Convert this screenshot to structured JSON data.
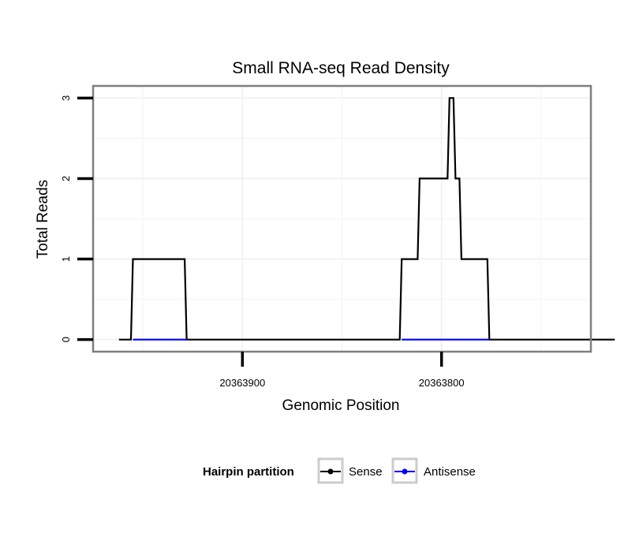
{
  "chart_data": {
    "type": "line",
    "title": "Small RNA-seq Read Density",
    "xlabel": "Genomic Position",
    "ylabel": "Total Reads",
    "x_reversed": true,
    "xlim": [
      20363975,
      20363725
    ],
    "ylim": [
      -0.15,
      3.15
    ],
    "x_ticks": [
      20363900,
      20363800
    ],
    "x_tick_labels": [
      "20363900",
      "20363800"
    ],
    "y_ticks": [
      0,
      1,
      2,
      3
    ],
    "y_tick_labels": [
      "0",
      "1",
      "2",
      "3"
    ],
    "grid": true,
    "legend": {
      "title": "Hairpin partition",
      "placement": "bottom"
    },
    "series": [
      {
        "name": "Sense",
        "color": "#000000",
        "x": [
          20363962,
          20363956,
          20363955,
          20363929,
          20363928,
          20363821,
          20363820,
          20363812,
          20363811,
          20363797,
          20363796,
          20363794,
          20363793,
          20363791,
          20363790,
          20363789,
          20363788,
          20363777,
          20363776,
          20363713
        ],
        "y": [
          0,
          0,
          1,
          1,
          0,
          0,
          1,
          1,
          2,
          2,
          3,
          3,
          2,
          2,
          1,
          1,
          1,
          1,
          0,
          0
        ]
      },
      {
        "name": "Antisense",
        "color": "#0000ff",
        "x": [
          20363955,
          20363928,
          20363820,
          20363776
        ],
        "y": [
          0,
          0,
          0,
          0
        ],
        "segments": [
          [
            0,
            1
          ],
          [
            2,
            3
          ]
        ]
      }
    ]
  }
}
